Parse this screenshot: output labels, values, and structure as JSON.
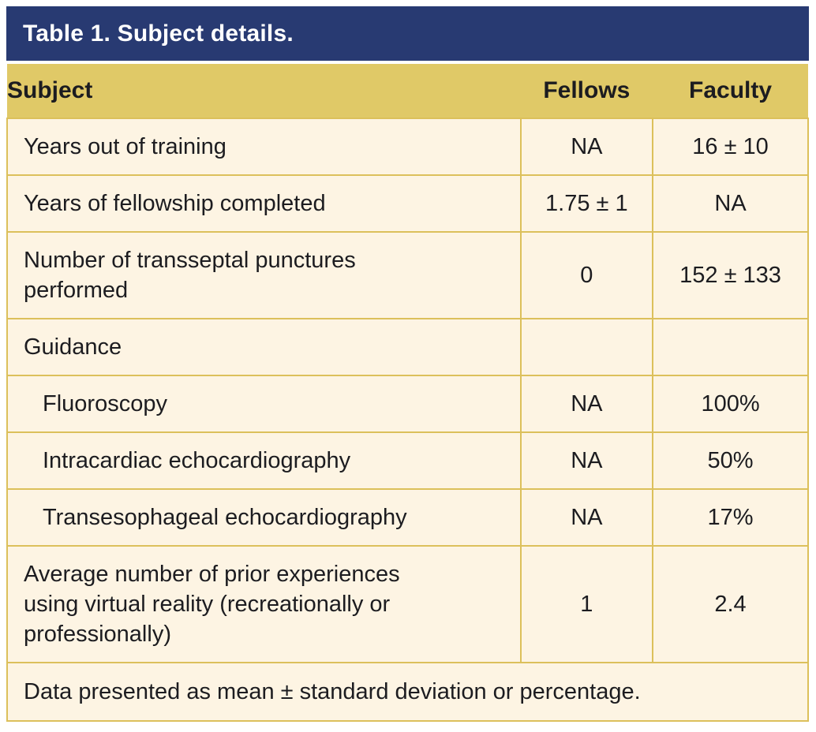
{
  "colors": {
    "header_navy": "#283a72",
    "header_gold": "#e0c967",
    "cell_cream": "#fdf4e3",
    "border_gold": "#dcc05b",
    "title_text": "#ffffff",
    "body_text": "#1c1c20"
  },
  "table": {
    "title": "Table 1. Subject details.",
    "columns": [
      "Subject",
      "Fellows",
      "Faculty"
    ],
    "rows": [
      {
        "label": "Years out of training",
        "fellows": "NA",
        "faculty": "16 ± 10"
      },
      {
        "label": "Years of fellowship completed",
        "fellows": "1.75 ± 1",
        "faculty": "NA"
      },
      {
        "label": "Number of transseptal punctures\nperformed",
        "fellows": "0",
        "faculty": "152 ± 133"
      },
      {
        "label": "Guidance",
        "fellows": "",
        "faculty": ""
      },
      {
        "label": "Fluoroscopy",
        "fellows": "NA",
        "faculty": "100%"
      },
      {
        "label": "Intracardiac echocardiography",
        "fellows": "NA",
        "faculty": "50%"
      },
      {
        "label": "Transesophageal echocardiography",
        "fellows": "NA",
        "faculty": "17%"
      },
      {
        "label": "Average number of prior experiences\nusing virtual reality (recreationally or\nprofessionally)",
        "fellows": "1",
        "faculty": "2.4"
      }
    ],
    "footnote": "Data presented as mean ± standard deviation or percentage."
  }
}
